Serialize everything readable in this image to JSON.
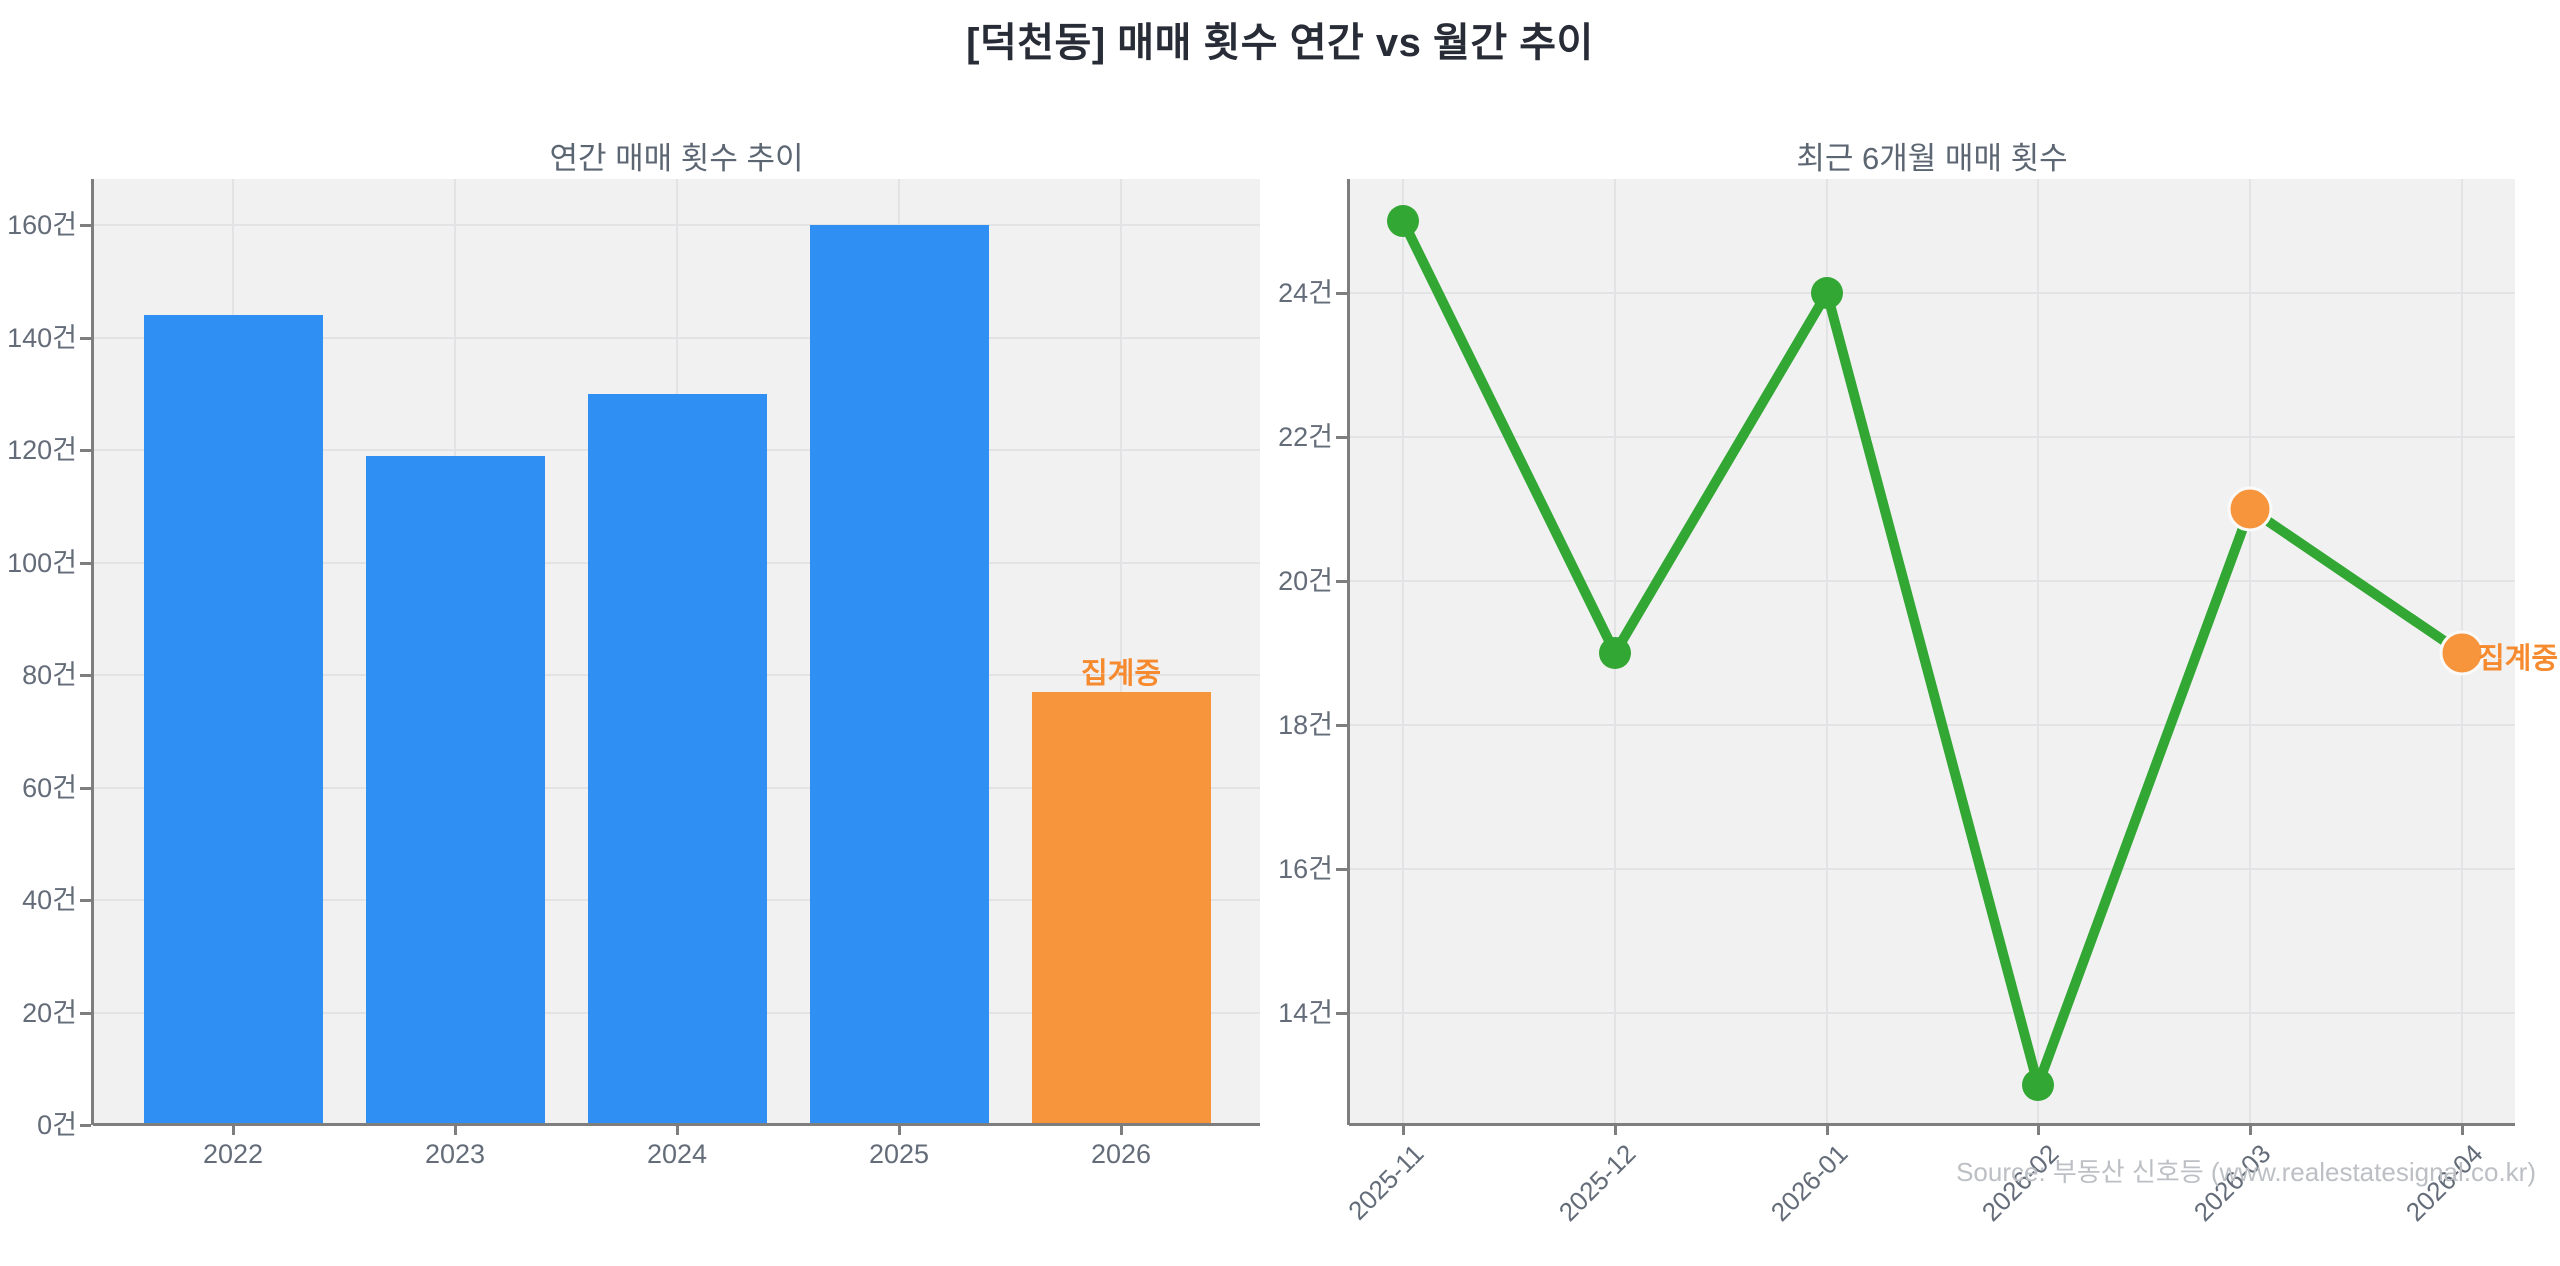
{
  "page": {
    "main_title": "[덕천동] 매매 횟수 연간 vs 월간 추이"
  },
  "footer": {
    "source": "Source: 부동산 신호등 (www.realestatesignal.co.kr)"
  },
  "colors": {
    "blue": "#2f8ff2",
    "orange": "#f7953d",
    "green": "#32a733",
    "annotation_orange": "#f68a2e",
    "title_text": "#272c36",
    "subtitle_text": "#5c6672",
    "tick_text": "#636c78",
    "footer_text": "#bcbfc4",
    "grid": "#e3e3e5",
    "plot_bg": "#f1f1f2",
    "spine": "#7e7e7e",
    "marker_edge": "#fafafa"
  },
  "chart_data": [
    {
      "type": "bar",
      "title": "연간 매매 횟수 추이",
      "categories": [
        "2022",
        "2023",
        "2024",
        "2025",
        "2026"
      ],
      "values": [
        144,
        119,
        130,
        160,
        77
      ],
      "bar_color_keys": [
        "blue",
        "blue",
        "blue",
        "blue",
        "orange"
      ],
      "yticks": [
        0,
        20,
        40,
        60,
        80,
        100,
        120,
        140,
        160
      ],
      "ytick_suffix": "건",
      "ylim": [
        0,
        168
      ],
      "grid": true,
      "legend": "none",
      "annotation": {
        "text": "집계중",
        "category": "2026"
      }
    },
    {
      "type": "line",
      "title": "최근 6개월 매매 횟수",
      "x": [
        "2025-11",
        "2025-12",
        "2026-01",
        "2026-02",
        "2026-03",
        "2026-04"
      ],
      "values": [
        25,
        19,
        24,
        13,
        21,
        19
      ],
      "marker_color_keys": [
        "green",
        "green",
        "green",
        "green",
        "orange",
        "orange"
      ],
      "yticks": [
        14,
        16,
        18,
        20,
        22,
        24
      ],
      "ytick_suffix": "건",
      "ylim": [
        12.4,
        25.6
      ],
      "grid": true,
      "legend": "none",
      "annotation": {
        "text": "집계중",
        "x": "2026-04"
      }
    }
  ]
}
